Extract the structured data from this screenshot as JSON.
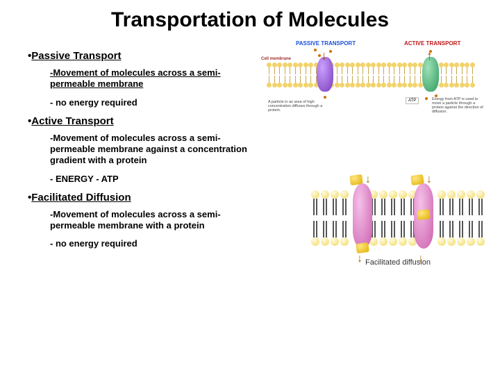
{
  "title": "Transportation of Molecules",
  "sections": [
    {
      "head": "Passive Transport",
      "items": [
        {
          "text": "-Movement of molecules across a semi-permeable membrane",
          "underline": true
        },
        {
          "text": "- no energy required",
          "underline": false
        }
      ]
    },
    {
      "head": "Active Transport",
      "items": [
        {
          "text": "-Movement of molecules across a semi-permeable membrane against a concentration gradient with a protein",
          "underline": false
        },
        {
          "text": "- ENERGY - ATP",
          "underline": false
        }
      ]
    },
    {
      "head": "Facilitated Diffusion",
      "items": [
        {
          "text": "-Movement of molecules across a semi-permeable membrane with a protein",
          "underline": false
        },
        {
          "text": "- no energy required",
          "underline": false
        }
      ]
    }
  ],
  "topDiagram": {
    "passiveLabel": "PASSIVE TRANSPORT",
    "passiveLabelColor": "#1a4fd8",
    "activeLabel": "ACTIVE TRANSPORT",
    "activeLabelColor": "#c01818",
    "cellMembraneLabel": "Cell membrane",
    "cellMembraneColor": "#a03030",
    "lipidHeadColor": "#f2d36a",
    "lipidTailColor": "#c7a84e",
    "captionPassive": "A particle in an area of high concentration diffuses through a protein.",
    "captionActive": "Energy from ATP is used to move a particle through a protein against the direction of diffusion.",
    "atpLabel": "ATP"
  },
  "bottomDiagram": {
    "label": "Facilitated diffusion",
    "lipidHeadLight": "#fffbe0",
    "lipidHeadDark": "#f0d860",
    "tailColor": "#555555",
    "proteinLight": "#f5c1e8",
    "proteinDark": "#cc5fae",
    "cargoLight": "#ffe680",
    "cargoDark": "#e0b000",
    "lipidCount": 18,
    "proteinPositions": [
      60,
      148
    ]
  }
}
